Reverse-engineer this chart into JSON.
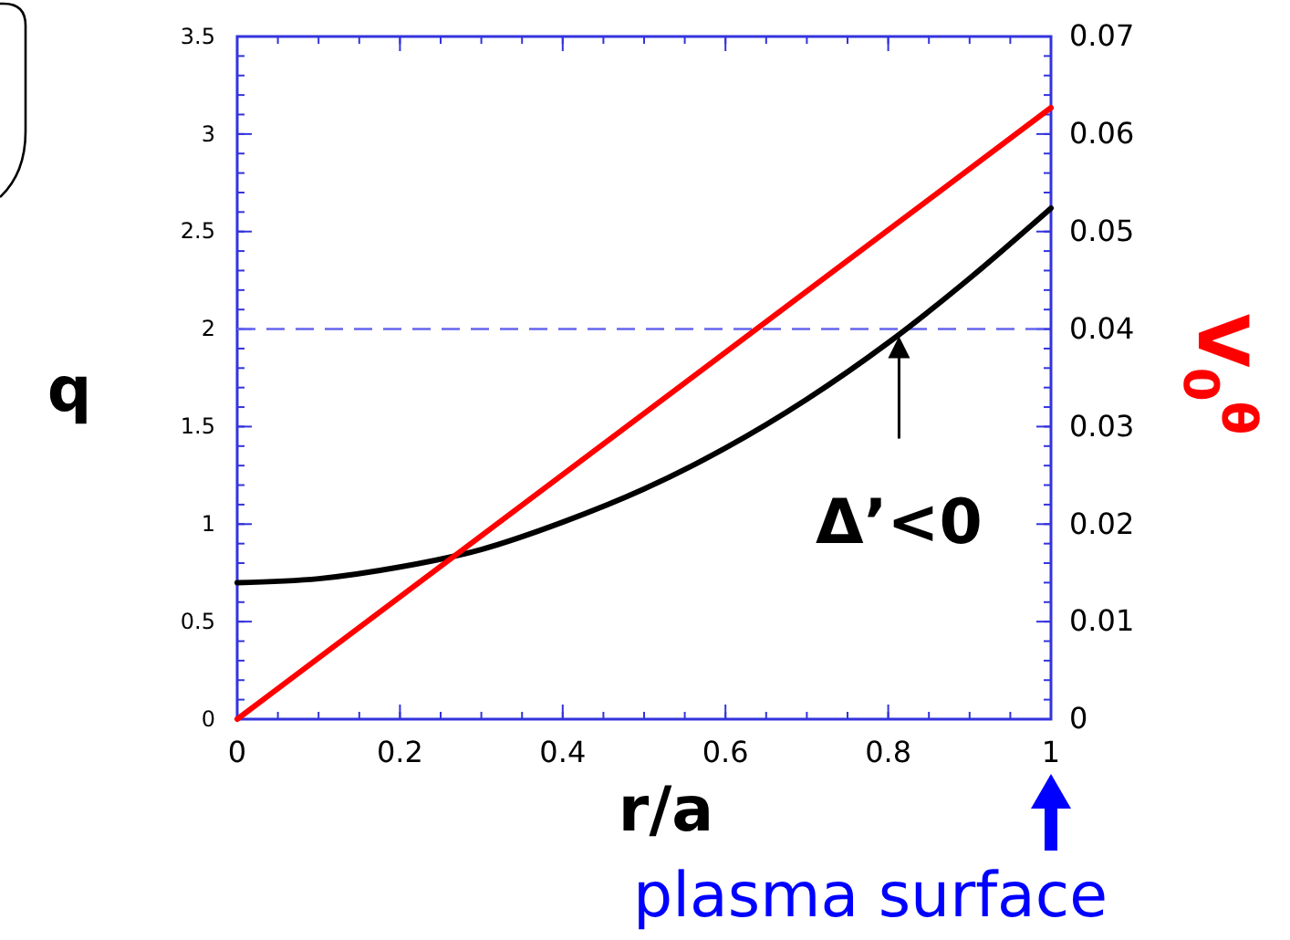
{
  "chart_data": {
    "type": "line",
    "xlabel": "r/a",
    "ylabel": "q",
    "y2label": "V$_{0}$$^{θ}$",
    "series": [
      {
        "color": "#000000",
        "x": [
          0,
          0.1,
          0.2,
          0.3,
          0.4,
          0.5,
          0.6,
          0.7,
          0.8,
          0.9,
          1
        ],
        "values": [
          0.7,
          0.72,
          0.78,
          0.87,
          1.01,
          1.18,
          1.39,
          1.64,
          1.93,
          2.26,
          2.62
        ]
      },
      {
        "color": "#ff0000",
        "axis": "y2",
        "x": [
          0,
          1
        ],
        "values": [
          0,
          0.0627
        ]
      }
    ],
    "xlim": [
      0,
      1
    ],
    "xticks": [
      0,
      0.2,
      0.4,
      0.6,
      0.8,
      1
    ],
    "ylim": [
      0,
      3.5
    ],
    "yticks": [
      0,
      0.5,
      1,
      1.5,
      2,
      2.5,
      3,
      3.5
    ],
    "y2lim": [
      0,
      0.07
    ],
    "y2ticks": [
      0,
      0.01,
      0.02,
      0.03,
      0.04,
      0.05,
      0.06,
      0.07
    ],
    "ref_lines": [
      {
        "axis": "y",
        "value": 2,
        "color": "#6666ee",
        "line_style": "dashed"
      }
    ],
    "annotations": [
      {
        "text": "Δ’<0",
        "x": 0.82,
        "y": 2
      },
      "plasma surface"
    ],
    "grid": false,
    "marker": "none",
    "line_style": "solid"
  }
}
